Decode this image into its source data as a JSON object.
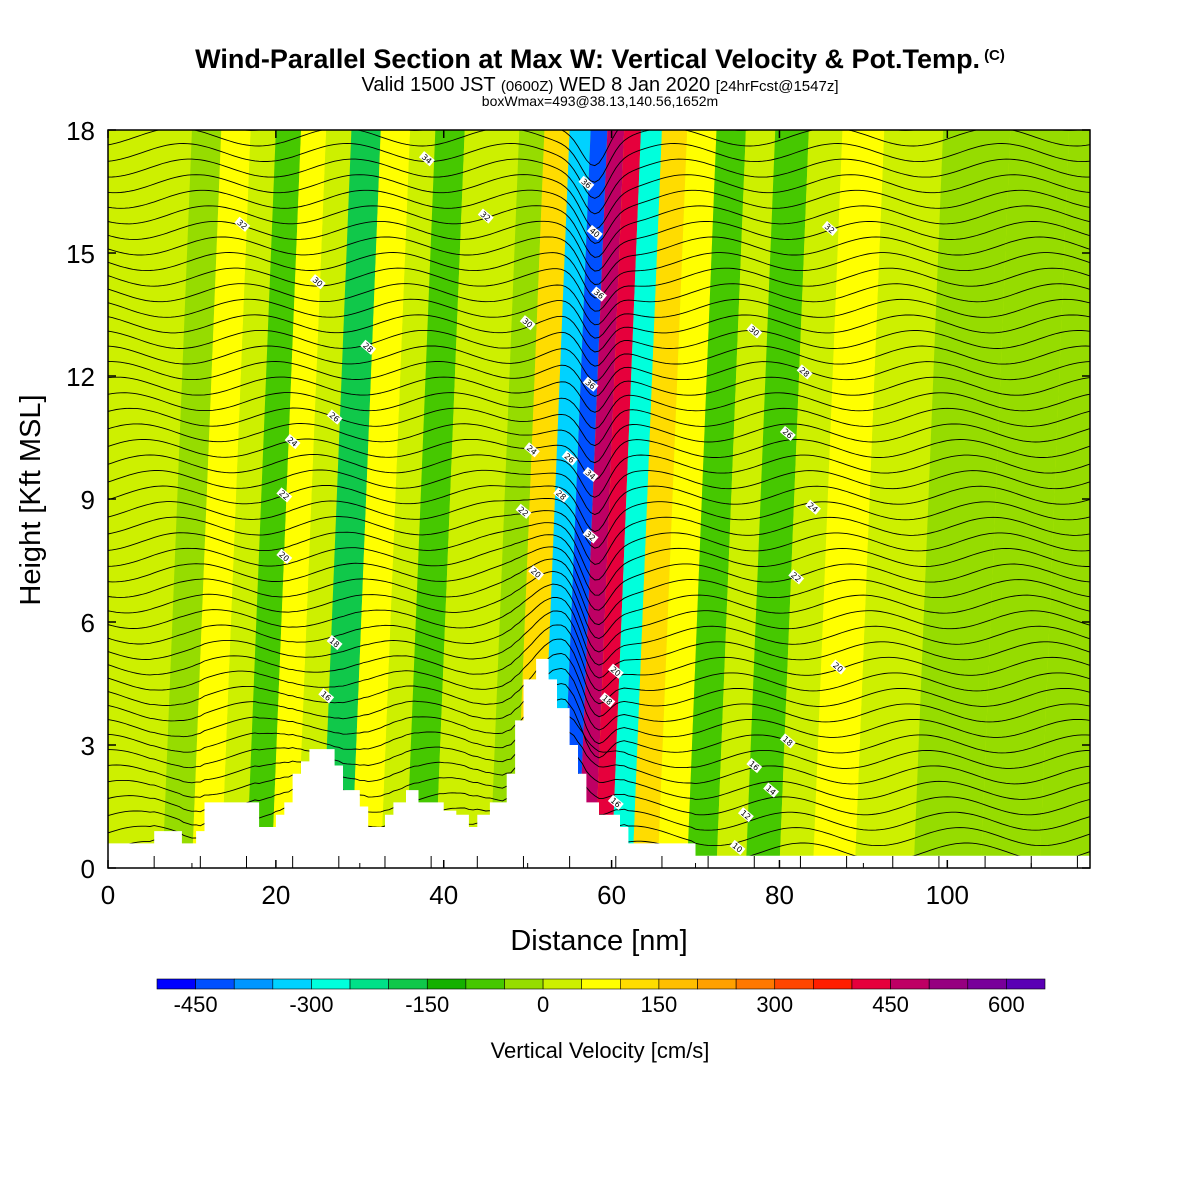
{
  "header": {
    "title": "Wind-Parallel Section at Max W: Vertical Velocity & Pot.Temp.",
    "title_suffix": "(C)",
    "subtitle_a": "Valid 1500 JST",
    "subtitle_b": "(0600Z)",
    "subtitle_c": "WED 8 Jan 2020",
    "subtitle_d": "[24hrFcst@1547z]",
    "meta": "boxWmax=493@38.13,140.56,1652m"
  },
  "chart_data": {
    "type": "heatmap",
    "title": "Wind-Parallel Section at Max W: Vertical Velocity & Pot.Temp.",
    "xlabel": "Distance [nm]",
    "ylabel": "Height [Kft MSL]",
    "xlim": [
      0,
      117
    ],
    "ylim": [
      0,
      18
    ],
    "x_ticks": [
      0,
      20,
      40,
      60,
      80,
      100
    ],
    "y_ticks": [
      0,
      3,
      6,
      9,
      12,
      15,
      18
    ],
    "colorbar": {
      "label": "Vertical Velocity [cm/s]",
      "tick_values": [
        -450,
        -300,
        -150,
        0,
        150,
        300,
        450,
        600
      ],
      "tick_labels": [
        "-450",
        "-300",
        "-150",
        "0",
        "150",
        "300",
        "450",
        "600"
      ],
      "colors": [
        "#0000ff",
        "#0050ff",
        "#0096ff",
        "#00d2ff",
        "#00ffdc",
        "#00e088",
        "#10c84a",
        "#14b000",
        "#46c800",
        "#96dc00",
        "#cdf000",
        "#ffff00",
        "#ffdc00",
        "#ffbe00",
        "#ffa000",
        "#ff7800",
        "#ff4600",
        "#ff1e00",
        "#e6003c",
        "#be0064",
        "#960080",
        "#78009a",
        "#5a00b4"
      ]
    },
    "terrain": [
      [
        0,
        0.6
      ],
      [
        5.5,
        0.6
      ],
      [
        5.5,
        0.9
      ],
      [
        8.8,
        0.9
      ],
      [
        8.8,
        0.6
      ],
      [
        10.5,
        0.6
      ],
      [
        10.5,
        0.9
      ],
      [
        11.5,
        0.9
      ],
      [
        11.5,
        1.6
      ],
      [
        18,
        1.6
      ],
      [
        18,
        1.0
      ],
      [
        20,
        1.0
      ],
      [
        20,
        1.3
      ],
      [
        21,
        1.3
      ],
      [
        21,
        1.6
      ],
      [
        22,
        1.6
      ],
      [
        22,
        2.3
      ],
      [
        23,
        2.3
      ],
      [
        23,
        2.6
      ],
      [
        24,
        2.6
      ],
      [
        24,
        2.9
      ],
      [
        27,
        2.9
      ],
      [
        27,
        2.5
      ],
      [
        28,
        2.5
      ],
      [
        28,
        1.9
      ],
      [
        30,
        1.9
      ],
      [
        30,
        1.5
      ],
      [
        31,
        1.5
      ],
      [
        31,
        1.0
      ],
      [
        33,
        1.0
      ],
      [
        33,
        1.3
      ],
      [
        34,
        1.3
      ],
      [
        34,
        1.6
      ],
      [
        35.5,
        1.6
      ],
      [
        35.5,
        1.9
      ],
      [
        37,
        1.9
      ],
      [
        37,
        1.6
      ],
      [
        40,
        1.6
      ],
      [
        40,
        1.4
      ],
      [
        41.5,
        1.4
      ],
      [
        41.5,
        1.3
      ],
      [
        43,
        1.3
      ],
      [
        43,
        1.0
      ],
      [
        44,
        1.0
      ],
      [
        44,
        1.3
      ],
      [
        45.5,
        1.3
      ],
      [
        45.5,
        1.6
      ],
      [
        47.5,
        1.6
      ],
      [
        47.5,
        2.3
      ],
      [
        48.5,
        2.3
      ],
      [
        48.5,
        3.6
      ],
      [
        49.5,
        3.6
      ],
      [
        49.5,
        4.6
      ],
      [
        51,
        4.6
      ],
      [
        51,
        5.1
      ],
      [
        52.5,
        5.1
      ],
      [
        52.5,
        4.6
      ],
      [
        53.5,
        4.6
      ],
      [
        53.5,
        3.9
      ],
      [
        55,
        3.9
      ],
      [
        55,
        3.0
      ],
      [
        56,
        3.0
      ],
      [
        56,
        2.3
      ],
      [
        57,
        2.3
      ],
      [
        57,
        1.6
      ],
      [
        58.5,
        1.6
      ],
      [
        58.5,
        1.3
      ],
      [
        61,
        1.3
      ],
      [
        61,
        1.0
      ],
      [
        62,
        1.0
      ],
      [
        62,
        0.6
      ],
      [
        70,
        0.6
      ],
      [
        70,
        0.3
      ],
      [
        117,
        0.3
      ]
    ],
    "vertical_velocity_bands": [
      {
        "x": 2,
        "w": 0.0
      },
      {
        "x": 5,
        "w": 20
      },
      {
        "x": 8,
        "w": -20
      },
      {
        "x": 12,
        "w": 70
      },
      {
        "x": 15,
        "w": 20
      },
      {
        "x": 18,
        "w": -80
      },
      {
        "x": 21,
        "w": 50
      },
      {
        "x": 24,
        "w": 10
      },
      {
        "x": 27,
        "w": -200
      },
      {
        "x": 31,
        "w": 60
      },
      {
        "x": 34,
        "w": 20
      },
      {
        "x": 37,
        "w": -80
      },
      {
        "x": 41,
        "w": 40
      },
      {
        "x": 44,
        "w": 10
      },
      {
        "x": 47,
        "w": -40
      },
      {
        "x": 50,
        "w": 120
      },
      {
        "x": 53,
        "w": -350
      },
      {
        "x": 55,
        "w": -450
      },
      {
        "x": 57,
        "w": 480
      },
      {
        "x": 59,
        "w": 400
      },
      {
        "x": 61,
        "w": -300
      },
      {
        "x": 64,
        "w": 130
      },
      {
        "x": 67,
        "w": 60
      },
      {
        "x": 71,
        "w": -60
      },
      {
        "x": 74,
        "w": 20
      },
      {
        "x": 78,
        "w": -70
      },
      {
        "x": 82,
        "w": 30
      },
      {
        "x": 86,
        "w": 80
      },
      {
        "x": 92,
        "w": 40
      },
      {
        "x": 100,
        "w": -20
      },
      {
        "x": 108,
        "w": -40
      },
      {
        "x": 114,
        "w": -30
      }
    ],
    "pot_temp_labels": [
      {
        "x": 38,
        "y": 17.3,
        "text": "34"
      },
      {
        "x": 16,
        "y": 15.7,
        "text": "32"
      },
      {
        "x": 45,
        "y": 15.9,
        "text": "32"
      },
      {
        "x": 86,
        "y": 15.6,
        "text": "32"
      },
      {
        "x": 25,
        "y": 14.3,
        "text": "30"
      },
      {
        "x": 50,
        "y": 13.3,
        "text": "30"
      },
      {
        "x": 77,
        "y": 13.1,
        "text": "30"
      },
      {
        "x": 31,
        "y": 12.7,
        "text": "28"
      },
      {
        "x": 83,
        "y": 12.1,
        "text": "28"
      },
      {
        "x": 27,
        "y": 11.0,
        "text": "26"
      },
      {
        "x": 81,
        "y": 10.6,
        "text": "26"
      },
      {
        "x": 22,
        "y": 10.4,
        "text": "24"
      },
      {
        "x": 50.5,
        "y": 10.2,
        "text": "24"
      },
      {
        "x": 84,
        "y": 8.8,
        "text": "24"
      },
      {
        "x": 21,
        "y": 9.1,
        "text": "22"
      },
      {
        "x": 49.5,
        "y": 8.7,
        "text": "22"
      },
      {
        "x": 82,
        "y": 7.1,
        "text": "22"
      },
      {
        "x": 21,
        "y": 7.6,
        "text": "20"
      },
      {
        "x": 51,
        "y": 7.2,
        "text": "20"
      },
      {
        "x": 87,
        "y": 4.9,
        "text": "20"
      },
      {
        "x": 27,
        "y": 5.5,
        "text": "18"
      },
      {
        "x": 81,
        "y": 3.1,
        "text": "18"
      },
      {
        "x": 26,
        "y": 4.2,
        "text": "16"
      },
      {
        "x": 77,
        "y": 2.5,
        "text": "16"
      },
      {
        "x": 79,
        "y": 1.9,
        "text": "14"
      },
      {
        "x": 76,
        "y": 1.3,
        "text": "12"
      },
      {
        "x": 75,
        "y": 0.5,
        "text": "10"
      },
      {
        "x": 57,
        "y": 16.7,
        "text": "36"
      },
      {
        "x": 58,
        "y": 15.5,
        "text": "40"
      },
      {
        "x": 58.5,
        "y": 14.0,
        "text": "36"
      },
      {
        "x": 57.5,
        "y": 11.8,
        "text": "36"
      },
      {
        "x": 55,
        "y": 10.0,
        "text": "26"
      },
      {
        "x": 57.5,
        "y": 9.6,
        "text": "34"
      },
      {
        "x": 54,
        "y": 9.1,
        "text": "28"
      },
      {
        "x": 57.5,
        "y": 8.1,
        "text": "32"
      },
      {
        "x": 60.5,
        "y": 4.8,
        "text": "20"
      },
      {
        "x": 59.5,
        "y": 4.1,
        "text": "18"
      },
      {
        "x": 60.5,
        "y": 1.6,
        "text": "16"
      }
    ]
  }
}
